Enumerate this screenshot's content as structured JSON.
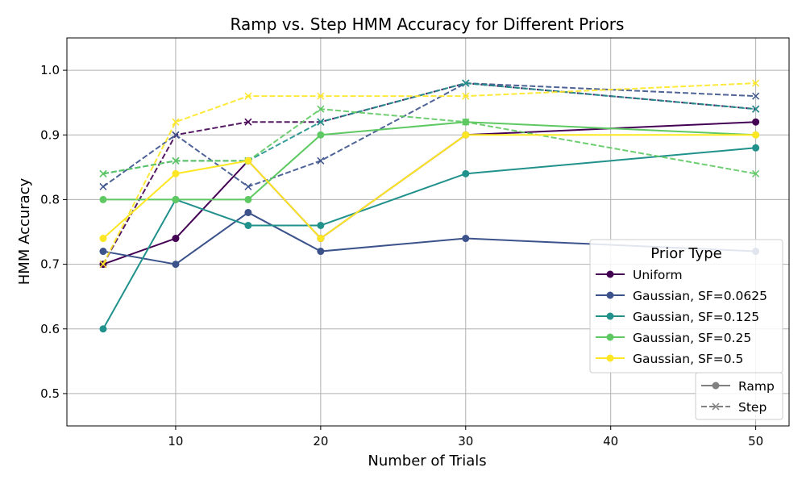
{
  "chart_data": {
    "type": "line",
    "title": "Ramp vs. Step HMM Accuracy for Different Priors",
    "xlabel": "Number of Trials",
    "ylabel": "HMM Accuracy",
    "x": [
      5,
      10,
      15,
      20,
      30,
      50
    ],
    "xlim": [
      2.5,
      52.3
    ],
    "ylim": [
      0.45,
      1.05
    ],
    "xticks": [
      10,
      20,
      30,
      40,
      50
    ],
    "yticks": [
      0.5,
      0.6,
      0.7,
      0.8,
      0.9,
      1.0
    ],
    "xtick_labels": [
      "10",
      "20",
      "30",
      "40",
      "50"
    ],
    "ytick_labels": [
      "0.5",
      "0.6",
      "0.7",
      "0.8",
      "0.9",
      "1.0"
    ],
    "grid": true,
    "series": [
      {
        "name": "Uniform",
        "color": "#440154",
        "ramp": [
          0.7,
          0.74,
          0.86,
          0.74,
          0.9,
          0.92
        ],
        "step": [
          0.7,
          0.9,
          0.92,
          0.92,
          0.98,
          0.94
        ]
      },
      {
        "name": "Gaussian, SF=0.0625",
        "color": "#3b528b",
        "ramp": [
          0.72,
          0.7,
          0.78,
          0.72,
          0.74,
          0.72
        ],
        "step": [
          0.82,
          0.9,
          0.82,
          0.86,
          0.98,
          0.96
        ]
      },
      {
        "name": "Gaussian, SF=0.125",
        "color": "#21918c",
        "ramp": [
          0.6,
          0.8,
          0.76,
          0.76,
          0.84,
          0.88
        ],
        "step": [
          0.84,
          0.86,
          0.86,
          0.92,
          0.98,
          0.94
        ]
      },
      {
        "name": "Gaussian, SF=0.25",
        "color": "#5ec962",
        "ramp": [
          0.8,
          0.8,
          0.8,
          0.9,
          0.92,
          0.9
        ],
        "step": [
          0.84,
          0.86,
          0.86,
          0.94,
          0.92,
          0.84
        ]
      },
      {
        "name": "Gaussian, SF=0.5",
        "color": "#fde725",
        "ramp": [
          0.74,
          0.84,
          0.86,
          0.74,
          0.9,
          0.9
        ],
        "step": [
          0.7,
          0.92,
          0.96,
          0.96,
          0.96,
          0.98
        ]
      }
    ],
    "legend": {
      "title": "Prior Type",
      "placement": "right",
      "style_entries": [
        {
          "label": "Ramp",
          "dash": "solid",
          "marker": "circle",
          "color": "#808080"
        },
        {
          "label": "Step",
          "dash": "dashed",
          "marker": "x",
          "color": "#808080"
        }
      ]
    }
  }
}
